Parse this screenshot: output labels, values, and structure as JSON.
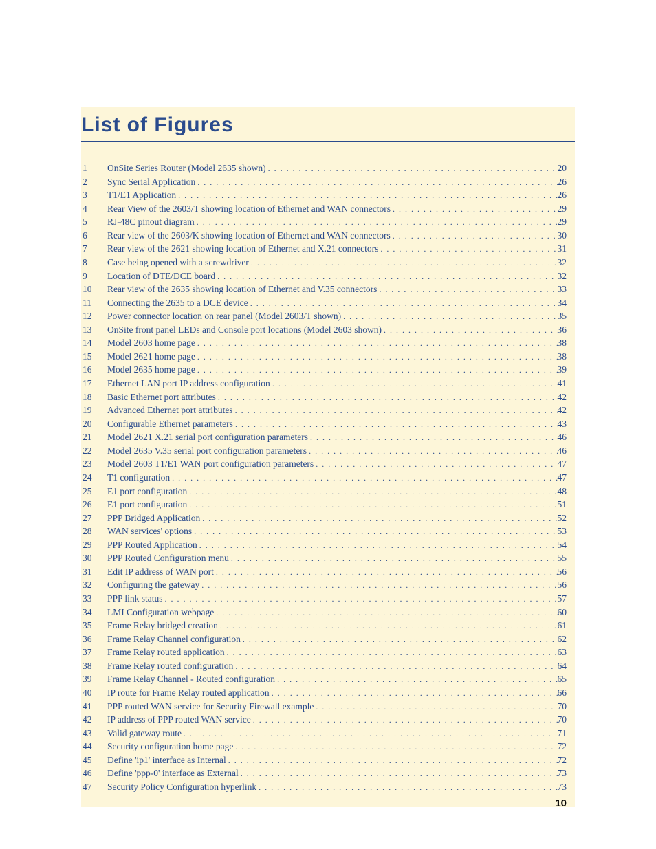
{
  "title": "List of Figures",
  "page_number": "10",
  "colors": {
    "page_bg": "#ffffff",
    "content_bg": "#fdf6d9",
    "heading": "#2a4b8d",
    "link": "#2a4b8d",
    "rule": "#2a4b8d"
  },
  "typography": {
    "title_font": "Arial Black / Heavy sans-serif",
    "title_size_pt": 22,
    "body_font": "Georgia / serif",
    "body_size_pt": 10,
    "page_number_font": "Arial Black",
    "page_number_size_pt": 11
  },
  "entries": [
    {
      "n": "1",
      "label": "OnSite Series Router (Model 2635 shown)",
      "page": "20"
    },
    {
      "n": "2",
      "label": "Sync Serial Application",
      "page": "26"
    },
    {
      "n": "3",
      "label": "T1/E1 Application",
      "page": "26"
    },
    {
      "n": "4",
      "label": "Rear View of the 2603/T showing location of Ethernet and WAN connectors",
      "page": "29"
    },
    {
      "n": "5",
      "label": "RJ-48C pinout diagram",
      "page": "29"
    },
    {
      "n": "6",
      "label": "Rear view of the 2603/K showing location of Ethernet and WAN connectors",
      "page": "30"
    },
    {
      "n": "7",
      "label": "Rear view of the 2621 showing location of Ethernet and X.21 connectors",
      "page": "31"
    },
    {
      "n": "8",
      "label": "Case being opened with a screwdriver",
      "page": "32"
    },
    {
      "n": "9",
      "label": "Location of DTE/DCE board",
      "page": "32"
    },
    {
      "n": "10",
      "label": "Rear view of the 2635 showing location of Ethernet and V.35 connectors",
      "page": "33"
    },
    {
      "n": "11",
      "label": "Connecting the 2635 to a DCE device",
      "page": "34"
    },
    {
      "n": "12",
      "label": "Power connector location on rear panel (Model 2603/T shown)",
      "page": "35"
    },
    {
      "n": "13",
      "label": "OnSite front panel LEDs and Console port locations (Model 2603 shown)",
      "page": "36"
    },
    {
      "n": "14",
      "label": "Model 2603 home page",
      "page": "38"
    },
    {
      "n": "15",
      "label": "Model 2621 home page",
      "page": "38"
    },
    {
      "n": "16",
      "label": "Model 2635 home page",
      "page": "39"
    },
    {
      "n": "17",
      "label": "Ethernet LAN port IP address configuration",
      "page": "41"
    },
    {
      "n": "18",
      "label": "Basic Ethernet port attributes",
      "page": "42"
    },
    {
      "n": "19",
      "label": "Advanced Ethernet port attributes",
      "page": "42"
    },
    {
      "n": "20",
      "label": "Configurable Ethernet parameters",
      "page": "43"
    },
    {
      "n": "21",
      "label": "Model 2621 X.21 serial port configuration parameters",
      "page": "46"
    },
    {
      "n": "22",
      "label": "Model 2635 V.35 serial port configuration parameters",
      "page": "46"
    },
    {
      "n": "23",
      "label": "Model 2603 T1/E1 WAN port configuration parameters",
      "page": "47"
    },
    {
      "n": "24",
      "label": "T1 configuration",
      "page": "47"
    },
    {
      "n": "25",
      "label": "E1 port configuration",
      "page": "48"
    },
    {
      "n": "26",
      "label": "E1 port configuration",
      "page": "51"
    },
    {
      "n": "27",
      "label": "PPP Bridged Application",
      "page": "52"
    },
    {
      "n": "28",
      "label": "WAN services' options",
      "page": "53"
    },
    {
      "n": "29",
      "label": "PPP Routed Application",
      "page": "54"
    },
    {
      "n": "30",
      "label": "PPP Routed Configuration menu",
      "page": "55"
    },
    {
      "n": "31",
      "label": "Edit IP address of WAN port",
      "page": "56"
    },
    {
      "n": "32",
      "label": "Configuring the gateway",
      "page": "56"
    },
    {
      "n": "33",
      "label": "PPP link status",
      "page": "57"
    },
    {
      "n": "34",
      "label": "LMI Configuration webpage",
      "page": "60"
    },
    {
      "n": "35",
      "label": "Frame Relay bridged creation",
      "page": "61"
    },
    {
      "n": "36",
      "label": "Frame Relay Channel configuration",
      "page": "62"
    },
    {
      "n": "37",
      "label": "Frame Relay routed application",
      "page": "63"
    },
    {
      "n": "38",
      "label": "Frame Relay routed configuration",
      "page": "64"
    },
    {
      "n": "39",
      "label": "Frame Relay Channel - Routed configuration",
      "page": "65"
    },
    {
      "n": "40",
      "label": "IP route for Frame Relay routed application",
      "page": "66"
    },
    {
      "n": "41",
      "label": "PPP routed WAN service for Security Firewall example",
      "page": "70"
    },
    {
      "n": "42",
      "label": "IP address of PPP routed WAN service",
      "page": "70"
    },
    {
      "n": "43",
      "label": "Valid gateway route",
      "page": "71"
    },
    {
      "n": "44",
      "label": "Security configuration home page",
      "page": "72"
    },
    {
      "n": "45",
      "label": "Define 'ip1' interface as Internal",
      "page": "72"
    },
    {
      "n": "46",
      "label": "Define 'ppp-0' interface as External",
      "page": "73"
    },
    {
      "n": "47",
      "label": "Security Policy Configuration hyperlink",
      "page": "73"
    }
  ]
}
